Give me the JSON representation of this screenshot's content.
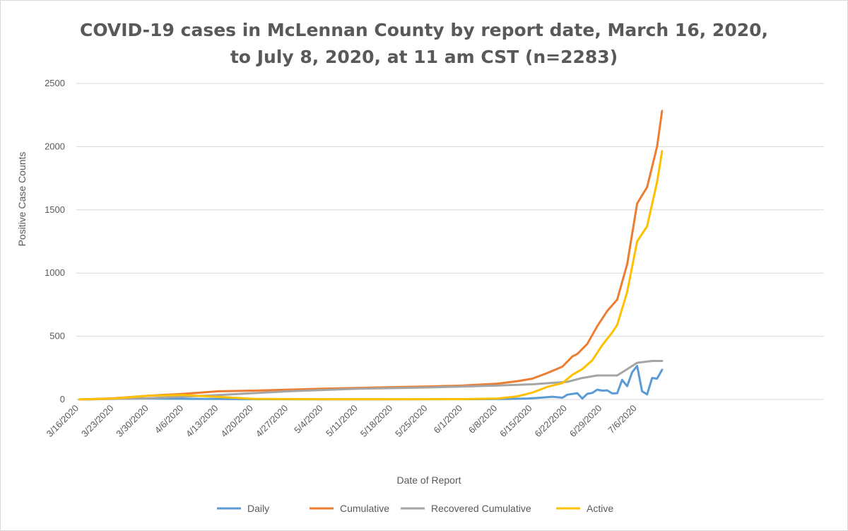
{
  "chart_data": {
    "type": "line",
    "title_line1": "COVID-19 cases in McLennan County by report date, March 16, 2020,",
    "title_line2": "to July 8, 2020, at 11 am CST (n=2283)",
    "xlabel": "Date of Report",
    "ylabel": "Positive Case Counts",
    "ylim": [
      0,
      2500
    ],
    "yticks": [
      0,
      500,
      1000,
      1500,
      2000,
      2500
    ],
    "x_start": "3/16/2020",
    "x_end": "7/8/2020",
    "xtick_labels": [
      "3/16/2020",
      "3/23/2020",
      "3/30/2020",
      "4/6/2020",
      "4/13/2020",
      "4/20/2020",
      "4/27/2020",
      "5/4/2020",
      "5/11/2020",
      "5/18/2020",
      "5/25/2020",
      "6/1/2020",
      "6/8/2020",
      "6/15/2020",
      "6/22/2020",
      "6/29/2020",
      "7/6/2020"
    ],
    "grid": "horizontal",
    "legend_position": "bottom",
    "series": [
      {
        "name": "Daily",
        "color": "#5b9bd5",
        "points": [
          [
            "3/16/2020",
            0
          ],
          [
            "3/20/2020",
            3
          ],
          [
            "3/25/2020",
            6
          ],
          [
            "3/30/2020",
            8
          ],
          [
            "4/3/2020",
            6
          ],
          [
            "4/8/2020",
            5
          ],
          [
            "4/13/2020",
            4
          ],
          [
            "4/20/2020",
            2
          ],
          [
            "5/1/2020",
            1
          ],
          [
            "5/15/2020",
            1
          ],
          [
            "6/1/2020",
            2
          ],
          [
            "6/10/2020",
            4
          ],
          [
            "6/14/2020",
            8
          ],
          [
            "6/17/2020",
            15
          ],
          [
            "6/19/2020",
            22
          ],
          [
            "6/21/2020",
            14
          ],
          [
            "6/22/2020",
            38
          ],
          [
            "6/24/2020",
            50
          ],
          [
            "6/25/2020",
            8
          ],
          [
            "6/26/2020",
            45
          ],
          [
            "6/27/2020",
            52
          ],
          [
            "6/28/2020",
            78
          ],
          [
            "6/29/2020",
            70
          ],
          [
            "6/30/2020",
            72
          ],
          [
            "7/1/2020",
            48
          ],
          [
            "7/2/2020",
            50
          ],
          [
            "7/3/2020",
            155
          ],
          [
            "7/4/2020",
            105
          ],
          [
            "7/5/2020",
            215
          ],
          [
            "7/6/2020",
            265
          ],
          [
            "7/7/2020",
            65
          ],
          [
            "7/8/2020",
            40
          ],
          [
            "7/9/2020",
            170
          ],
          [
            "7/10/2020",
            165
          ],
          [
            "7/11/2020",
            235
          ]
        ]
      },
      {
        "name": "Cumulative",
        "color": "#ed7d31",
        "points": [
          [
            "3/16/2020",
            0
          ],
          [
            "3/23/2020",
            10
          ],
          [
            "3/30/2020",
            30
          ],
          [
            "4/6/2020",
            45
          ],
          [
            "4/13/2020",
            65
          ],
          [
            "4/20/2020",
            70
          ],
          [
            "4/27/2020",
            78
          ],
          [
            "5/4/2020",
            85
          ],
          [
            "5/11/2020",
            92
          ],
          [
            "5/18/2020",
            98
          ],
          [
            "5/25/2020",
            103
          ],
          [
            "6/1/2020",
            110
          ],
          [
            "6/8/2020",
            125
          ],
          [
            "6/12/2020",
            145
          ],
          [
            "6/15/2020",
            165
          ],
          [
            "6/18/2020",
            210
          ],
          [
            "6/21/2020",
            260
          ],
          [
            "6/23/2020",
            340
          ],
          [
            "6/24/2020",
            360
          ],
          [
            "6/26/2020",
            440
          ],
          [
            "6/28/2020",
            580
          ],
          [
            "6/30/2020",
            700
          ],
          [
            "7/2/2020",
            790
          ],
          [
            "7/4/2020",
            1070
          ],
          [
            "7/6/2020",
            1550
          ],
          [
            "7/8/2020",
            1680
          ],
          [
            "7/10/2020",
            2000
          ],
          [
            "7/11/2020",
            2283
          ]
        ]
      },
      {
        "name": "Recovered Cumulative",
        "color": "#a5a5a5",
        "points": [
          [
            "3/16/2020",
            0
          ],
          [
            "3/30/2020",
            10
          ],
          [
            "4/13/2020",
            35
          ],
          [
            "4/27/2020",
            65
          ],
          [
            "5/11/2020",
            85
          ],
          [
            "5/25/2020",
            95
          ],
          [
            "6/8/2020",
            110
          ],
          [
            "6/15/2020",
            120
          ],
          [
            "6/22/2020",
            140
          ],
          [
            "6/25/2020",
            170
          ],
          [
            "6/28/2020",
            190
          ],
          [
            "7/2/2020",
            190
          ],
          [
            "7/4/2020",
            240
          ],
          [
            "7/6/2020",
            290
          ],
          [
            "7/9/2020",
            305
          ],
          [
            "7/11/2020",
            305
          ]
        ]
      },
      {
        "name": "Active",
        "color": "#ffc000",
        "points": [
          [
            "3/16/2020",
            0
          ],
          [
            "3/23/2020",
            8
          ],
          [
            "3/30/2020",
            30
          ],
          [
            "4/6/2020",
            35
          ],
          [
            "4/13/2020",
            20
          ],
          [
            "4/20/2020",
            5
          ],
          [
            "5/4/2020",
            2
          ],
          [
            "5/18/2020",
            2
          ],
          [
            "6/1/2020",
            3
          ],
          [
            "6/8/2020",
            8
          ],
          [
            "6/12/2020",
            25
          ],
          [
            "6/15/2020",
            55
          ],
          [
            "6/18/2020",
            100
          ],
          [
            "6/21/2020",
            130
          ],
          [
            "6/23/2020",
            195
          ],
          [
            "6/25/2020",
            240
          ],
          [
            "6/27/2020",
            310
          ],
          [
            "6/29/2020",
            430
          ],
          [
            "7/1/2020",
            530
          ],
          [
            "7/2/2020",
            590
          ],
          [
            "7/4/2020",
            850
          ],
          [
            "7/6/2020",
            1250
          ],
          [
            "7/8/2020",
            1370
          ],
          [
            "7/10/2020",
            1720
          ],
          [
            "7/11/2020",
            1965
          ]
        ]
      }
    ]
  }
}
